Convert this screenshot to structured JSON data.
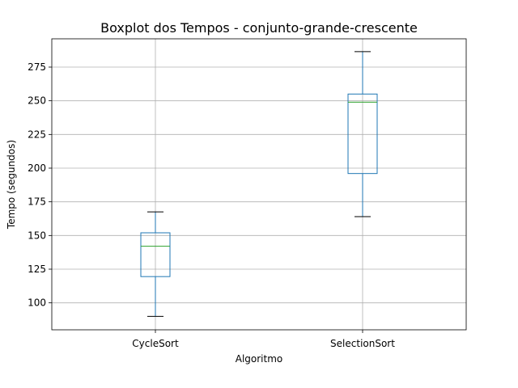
{
  "chart_data": {
    "type": "boxplot",
    "title": "Boxplot dos Tempos - conjunto-grande-crescente",
    "xlabel": "Algoritmo",
    "ylabel": "Tempo (segundos)",
    "ylim": [
      80,
      296
    ],
    "yticks": [
      100,
      125,
      150,
      175,
      200,
      225,
      250,
      275
    ],
    "grid": true,
    "colors": {
      "box": "#1f77b4",
      "median": "#2ca02c",
      "whisker": "#000000",
      "grid": "#b0b0b0"
    },
    "categories": [
      "CycleSort",
      "SelectionSort"
    ],
    "boxes": [
      {
        "name": "CycleSort",
        "whisker_low": 90,
        "q1": 119.5,
        "median": 142,
        "q3": 152,
        "whisker_high": 167.5
      },
      {
        "name": "SelectionSort",
        "whisker_low": 164,
        "q1": 196,
        "median": 249,
        "q3": 255,
        "whisker_high": 286.5
      }
    ]
  }
}
